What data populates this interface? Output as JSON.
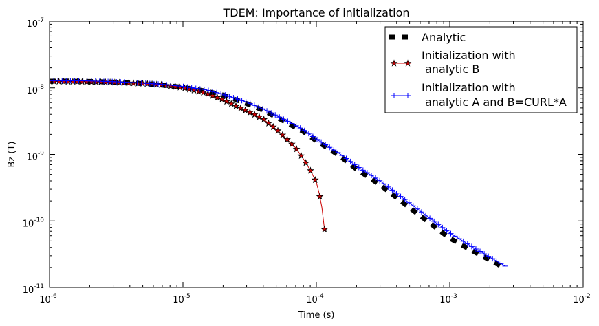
{
  "chart_data": {
    "type": "line",
    "title": "TDEM: Importance of initialization",
    "xlabel": "Time (s)",
    "ylabel": "Bz (T)",
    "xscale": "log",
    "yscale": "log",
    "xlim": [
      1e-06,
      0.01
    ],
    "ylim": [
      1e-11,
      1e-07
    ],
    "x_ticks": [
      {
        "base": "10",
        "exp": "-6",
        "value": 1e-06
      },
      {
        "base": "10",
        "exp": "-5",
        "value": 1e-05
      },
      {
        "base": "10",
        "exp": "-4",
        "value": 0.0001
      },
      {
        "base": "10",
        "exp": "-3",
        "value": 0.001
      },
      {
        "base": "10",
        "exp": "-2",
        "value": 0.01
      }
    ],
    "y_ticks": [
      {
        "base": "10",
        "exp": "-11",
        "value": 1e-11
      },
      {
        "base": "10",
        "exp": "-10",
        "value": 1e-10
      },
      {
        "base": "10",
        "exp": "-9",
        "value": 1e-09
      },
      {
        "base": "10",
        "exp": "-8",
        "value": 1e-08
      },
      {
        "base": "10",
        "exp": "-7",
        "value": 1e-07
      }
    ],
    "legend_position": "top-right",
    "series": [
      {
        "name": "Analytic",
        "color": "#000000",
        "style": "thick-dashed",
        "x": [
          1e-06,
          1.5e-06,
          2e-06,
          3e-06,
          5e-06,
          7e-06,
          1e-05,
          1.5e-05,
          2e-05,
          3e-05,
          4e-05,
          6e-05,
          8e-05,
          0.0001,
          0.00015,
          0.0002,
          0.0003,
          0.0005,
          0.0007,
          0.001,
          0.0015,
          0.0026
        ],
        "values": [
          1.26e-08,
          1.26e-08,
          1.25e-08,
          1.22e-08,
          1.16e-08,
          1.1e-08,
          1.02e-08,
          8.9e-09,
          7.8e-09,
          5.8e-09,
          4.6e-09,
          3e-09,
          2.2e-09,
          1.6e-09,
          9.5e-10,
          6e-10,
          3.5e-10,
          1.58e-10,
          9.5e-11,
          5.5e-11,
          3.5e-11,
          1.95e-11
        ]
      },
      {
        "name": "Initialization with\n analytic B",
        "color": "#cc0000",
        "marker": "star",
        "x": [
          1e-06,
          1.5e-06,
          2e-06,
          3e-06,
          5e-06,
          7e-06,
          1e-05,
          1.5e-05,
          2e-05,
          2.5e-05,
          3e-05,
          3.5e-05,
          4e-05,
          4.5e-05,
          5e-05,
          6e-05,
          7e-05,
          8e-05,
          9e-05,
          0.0001,
          0.000105,
          0.00011,
          0.000115
        ],
        "values": [
          1.25e-08,
          1.24e-08,
          1.23e-08,
          1.21e-08,
          1.16e-08,
          1.11e-08,
          1e-08,
          8.3e-09,
          6.6e-09,
          5.3e-09,
          4.5e-09,
          3.9e-09,
          3.4e-09,
          2.8e-09,
          2.4e-09,
          1.7e-09,
          1.25e-09,
          8.5e-10,
          5.8e-10,
          3.8e-10,
          2.6e-10,
          1.6e-10,
          7.5e-11
        ]
      },
      {
        "name": "Initialization with\n analytic A and B=CURL*A",
        "color": "#0000ff",
        "marker": "plus",
        "x": [
          1e-06,
          1.5e-06,
          2e-06,
          3e-06,
          5e-06,
          7e-06,
          1e-05,
          1.5e-05,
          2e-05,
          3e-05,
          4e-05,
          6e-05,
          8e-05,
          0.0001,
          0.00015,
          0.0002,
          0.0003,
          0.0005,
          0.0007,
          0.001,
          0.0015,
          0.0026
        ],
        "values": [
          1.28e-08,
          1.28e-08,
          1.27e-08,
          1.24e-08,
          1.18e-08,
          1.13e-08,
          1.05e-08,
          9.3e-09,
          8e-09,
          6.1e-09,
          4.8e-09,
          3.2e-09,
          2.35e-09,
          1.7e-09,
          1.02e-09,
          6.7e-10,
          4e-10,
          1.85e-10,
          1.12e-10,
          6.6e-11,
          4e-11,
          2.1e-11
        ]
      }
    ]
  }
}
